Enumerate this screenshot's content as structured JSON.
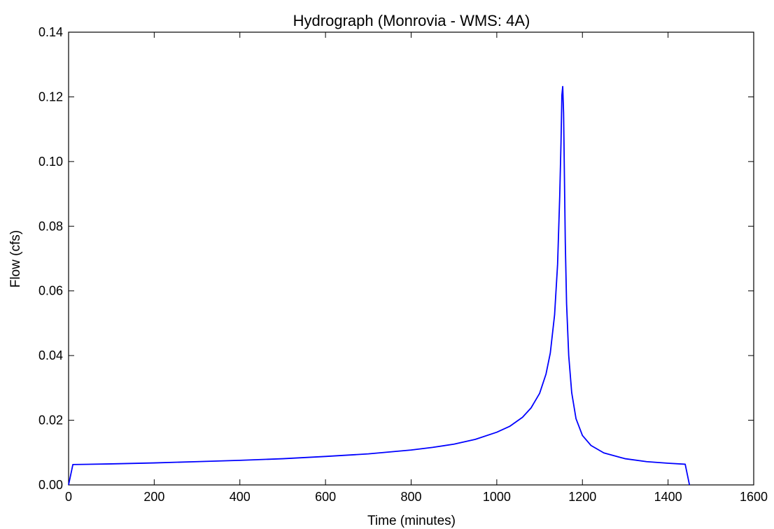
{
  "chart_data": {
    "type": "line",
    "title": "Hydrograph (Monrovia - WMS: 4A)",
    "xlabel": "Time (minutes)",
    "ylabel": "Flow (cfs)",
    "xlim": [
      0,
      1600
    ],
    "ylim": [
      0,
      0.14
    ],
    "xticks": [
      "0",
      "200",
      "400",
      "600",
      "800",
      "1000",
      "1200",
      "1400",
      "1600"
    ],
    "yticks": [
      "0.00",
      "0.02",
      "0.04",
      "0.06",
      "0.08",
      "0.10",
      "0.12",
      "0.14"
    ],
    "grid": false,
    "legend": "none",
    "series": [
      {
        "color": "#0000ff",
        "x": [
          0,
          10,
          100,
          200,
          300,
          400,
          500,
          600,
          700,
          800,
          850,
          900,
          950,
          1000,
          1030,
          1060,
          1080,
          1100,
          1115,
          1125,
          1135,
          1142,
          1147,
          1150,
          1152,
          1154,
          1156,
          1158,
          1160,
          1163,
          1168,
          1175,
          1185,
          1200,
          1220,
          1250,
          1300,
          1350,
          1400,
          1440,
          1450
        ],
        "y": [
          0.0,
          0.0063,
          0.0065,
          0.0068,
          0.0072,
          0.0076,
          0.0081,
          0.0088,
          0.0096,
          0.0108,
          0.0116,
          0.0126,
          0.0141,
          0.0163,
          0.0181,
          0.0209,
          0.0238,
          0.0283,
          0.0343,
          0.0408,
          0.0526,
          0.0682,
          0.0893,
          0.106,
          0.1205,
          0.1232,
          0.115,
          0.095,
          0.075,
          0.056,
          0.04,
          0.0285,
          0.0205,
          0.0153,
          0.0122,
          0.0099,
          0.0081,
          0.0072,
          0.0067,
          0.0064,
          0.0
        ]
      }
    ]
  }
}
